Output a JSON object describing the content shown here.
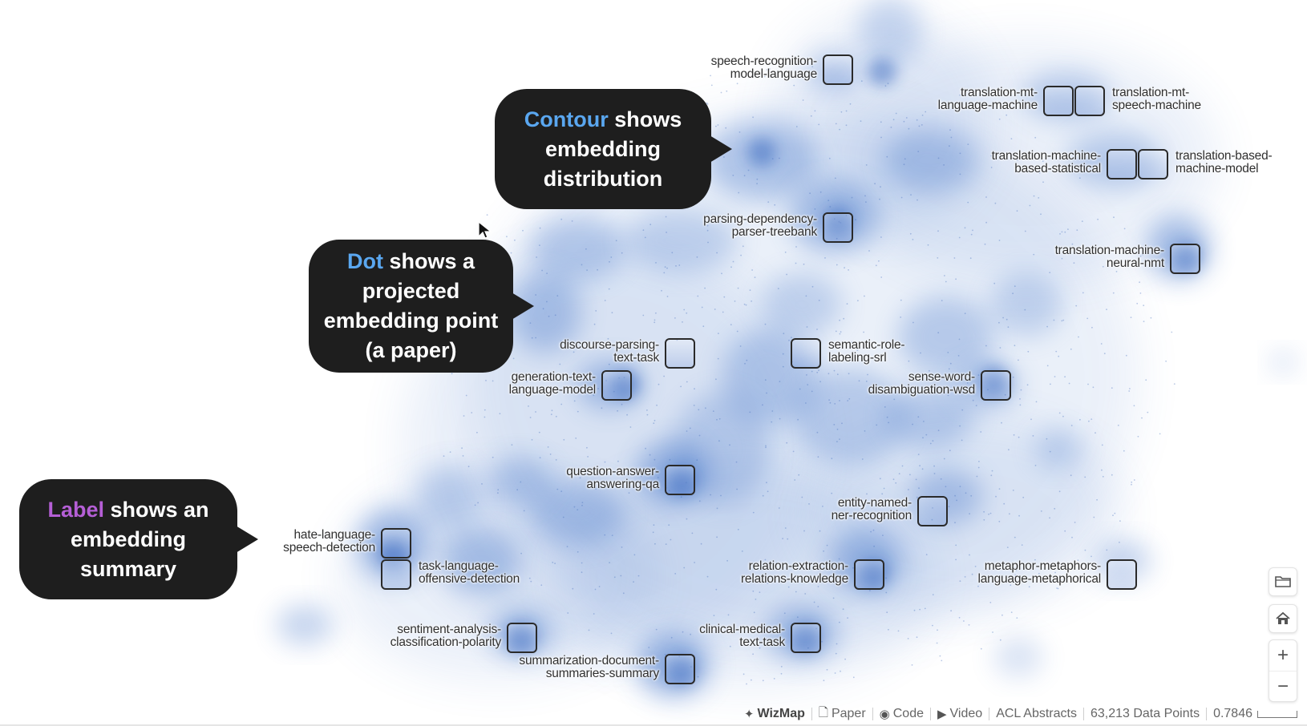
{
  "labels": [
    {
      "id": "speech-recognition",
      "lines": [
        "speech-recognition-",
        "model-language"
      ]
    },
    {
      "id": "translation-mt-language",
      "lines": [
        "translation-mt-",
        "language-machine"
      ]
    },
    {
      "id": "translation-mt-speech",
      "lines": [
        "translation-mt-",
        "speech-machine"
      ]
    },
    {
      "id": "translation-machine-statistical",
      "lines": [
        "translation-machine-",
        "based-statistical"
      ]
    },
    {
      "id": "translation-based-machine",
      "lines": [
        "translation-based-",
        "machine-model"
      ]
    },
    {
      "id": "parsing-dependency",
      "lines": [
        "parsing-dependency-",
        "parser-treebank"
      ]
    },
    {
      "id": "translation-neural",
      "lines": [
        "translation-machine-",
        "neural-nmt"
      ]
    },
    {
      "id": "discourse-parsing",
      "lines": [
        "discourse-parsing-",
        "text-task"
      ]
    },
    {
      "id": "semantic-role",
      "lines": [
        "semantic-role-",
        "labeling-srl"
      ]
    },
    {
      "id": "generation-text",
      "lines": [
        "generation-text-",
        "language-model"
      ]
    },
    {
      "id": "sense-word",
      "lines": [
        "sense-word-",
        "disambiguation-wsd"
      ]
    },
    {
      "id": "question-answer",
      "lines": [
        "question-answer-",
        "answering-qa"
      ]
    },
    {
      "id": "entity-named",
      "lines": [
        "entity-named-",
        "ner-recognition"
      ]
    },
    {
      "id": "hate-language",
      "lines": [
        "hate-language-",
        "speech-detection"
      ]
    },
    {
      "id": "task-language",
      "lines": [
        "task-language-",
        "offensive-detection"
      ]
    },
    {
      "id": "relation-extraction",
      "lines": [
        "relation-extraction-",
        "relations-knowledge"
      ]
    },
    {
      "id": "metaphor",
      "lines": [
        "metaphor-metaphors-",
        "language-metaphorical"
      ]
    },
    {
      "id": "sentiment-analysis",
      "lines": [
        "sentiment-analysis-",
        "classification-polarity"
      ]
    },
    {
      "id": "clinical-medical",
      "lines": [
        "clinical-medical-",
        "text-task"
      ]
    },
    {
      "id": "summarization",
      "lines": [
        "summarization-document-",
        "summaries-summary"
      ]
    }
  ],
  "callouts": {
    "contour": {
      "highlight": "Contour",
      "rest1": " shows",
      "line2": "embedding",
      "line3": "distribution",
      "highlight_color": "#5aa7f0"
    },
    "dot": {
      "highlight": "Dot",
      "rest1": " shows a",
      "line2": "projected",
      "line3": "embedding point",
      "line4": "(a paper)",
      "highlight_color": "#5aa7f0"
    },
    "label": {
      "highlight": "Label",
      "rest1": " shows an",
      "line2": "embedding",
      "line3": "summary",
      "highlight_color": "#b55fd6"
    }
  },
  "controls": {
    "folder_icon": "folder-icon",
    "home_icon": "home-icon",
    "zoom_in": "+",
    "zoom_out": "−"
  },
  "footer": {
    "brand": "WizMap",
    "paper": "Paper",
    "code": "Code",
    "video": "Video",
    "dataset": "ACL Abstracts",
    "data_points": "63,213 Data Points",
    "zoom_level": "0.7846"
  },
  "colors": {
    "contour": "#3f72c8",
    "callout_bg": "#1e1e1e",
    "highlight_blue": "#5aa7f0",
    "highlight_purple": "#b55fd6"
  }
}
